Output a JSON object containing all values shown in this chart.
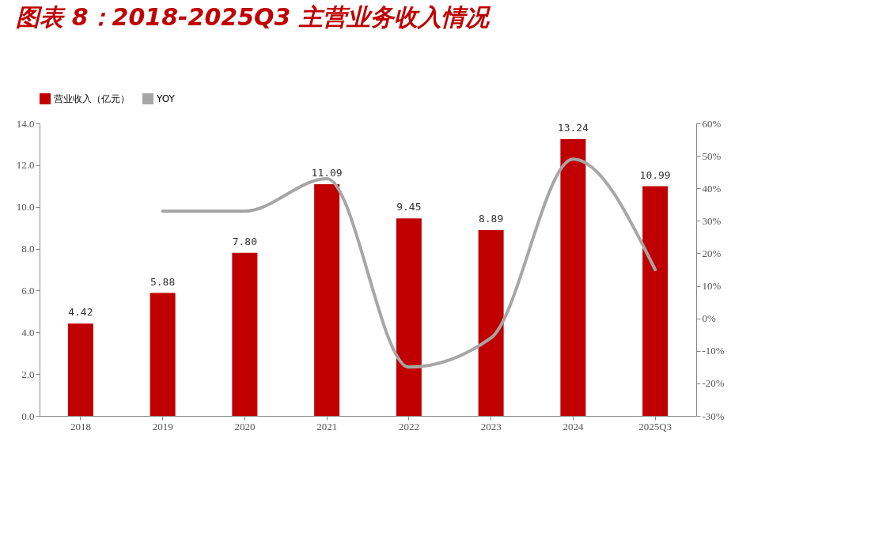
{
  "chart_data": {
    "type": "bar",
    "title": "图表 8：2018-2025Q3 主营业务收入情况",
    "categories": [
      "2018",
      "2019",
      "2020",
      "2021",
      "2022",
      "2023",
      "2024",
      "2025Q3"
    ],
    "series": [
      {
        "name": "营业收入（亿元）",
        "color": "#c00000",
        "values": [
          4.42,
          5.88,
          7.8,
          11.09,
          9.45,
          8.89,
          13.24,
          10.99
        ],
        "value_labels": [
          "4.42",
          "5.88",
          "7.80",
          "11.09",
          "9.45",
          "8.89",
          "13.24",
          "10.99"
        ]
      },
      {
        "name": "YOY",
        "type": "line",
        "axis": "y2",
        "color": "#a6a6a6",
        "values": [
          null,
          33,
          33,
          43,
          -15,
          -6,
          49,
          15
        ]
      }
    ],
    "ylim": [
      0,
      14
    ],
    "yticks": [
      {
        "value": 0,
        "label": "0.0"
      },
      {
        "value": 2,
        "label": "2.0"
      },
      {
        "value": 4,
        "label": "4.0"
      },
      {
        "value": 6,
        "label": "6.0"
      },
      {
        "value": 8,
        "label": "8.0"
      },
      {
        "value": 10,
        "label": "10.0"
      },
      {
        "value": 12,
        "label": "12.0"
      },
      {
        "value": 14,
        "label": "14.0"
      }
    ],
    "y2lim": [
      -30,
      60
    ],
    "y2ticks": [
      {
        "value": -30,
        "label": "-30%"
      },
      {
        "value": -20,
        "label": "-20%"
      },
      {
        "value": -10,
        "label": "-10%"
      },
      {
        "value": 0,
        "label": "0%"
      },
      {
        "value": 10,
        "label": "10%"
      },
      {
        "value": 20,
        "label": "20%"
      },
      {
        "value": 30,
        "label": "30%"
      },
      {
        "value": 40,
        "label": "40%"
      },
      {
        "value": 50,
        "label": "50%"
      },
      {
        "value": 60,
        "label": "60%"
      }
    ],
    "grid": false,
    "legend": "top",
    "marker": "none",
    "line_style": "solid"
  }
}
